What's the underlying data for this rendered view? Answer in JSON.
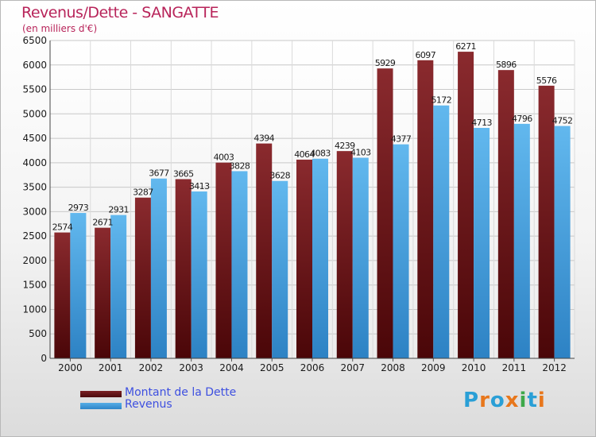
{
  "header": {
    "title": "Revenus/Dette - SANGATTE",
    "subtitle": "(en milliers d'€)"
  },
  "legend": {
    "debt_label": "Montant de la Dette",
    "revenue_label": "Revenus"
  },
  "logo": {
    "text": "Proxiti",
    "letters": [
      {
        "char": "P",
        "color": "#2a9fd6"
      },
      {
        "char": "r",
        "color": "#e8771c"
      },
      {
        "char": "o",
        "color": "#2a9fd6"
      },
      {
        "char": "x",
        "color": "#e8771c"
      },
      {
        "char": "i",
        "color": "#3ea84a"
      },
      {
        "char": "t",
        "color": "#2a9fd6"
      },
      {
        "char": "i",
        "color": "#e8771c"
      }
    ]
  },
  "colors": {
    "debt": "#7a1f22",
    "debt_dark": "#4d0b0d",
    "revenue": "#57aee6",
    "revenue_dark": "#2f86c8",
    "title": "#b8245a",
    "legend_text": "#3d4fe0"
  },
  "chart_data": {
    "type": "bar",
    "title": "Revenus/Dette - SANGATTE",
    "subtitle": "(en milliers d'€)",
    "categories": [
      "2000",
      "2001",
      "2002",
      "2003",
      "2004",
      "2005",
      "2006",
      "2007",
      "2008",
      "2009",
      "2010",
      "2011",
      "2012"
    ],
    "series": [
      {
        "name": "Montant de la Dette",
        "values": [
          2574,
          2671,
          3287,
          3665,
          4003,
          4394,
          4064,
          4239,
          5929,
          6097,
          6271,
          5896,
          5576
        ]
      },
      {
        "name": "Revenus",
        "values": [
          2973,
          2931,
          3677,
          3413,
          3828,
          3628,
          4083,
          4103,
          4377,
          5172,
          4713,
          4796,
          4752
        ]
      }
    ],
    "ylim": [
      0,
      6500
    ],
    "yticks": [
      0,
      500,
      1000,
      1500,
      2000,
      2500,
      3000,
      3500,
      4000,
      4500,
      5000,
      5500,
      6000,
      6500
    ],
    "grid": true,
    "legend_position": "bottom-left"
  }
}
